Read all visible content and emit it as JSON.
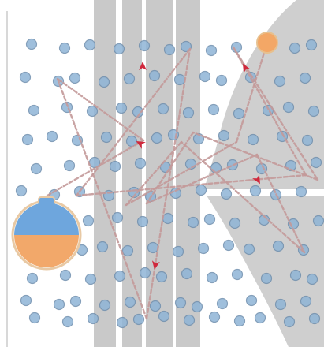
{
  "figure": {
    "description_none": "",
    "colors": {
      "background": "#ffffff",
      "band": "#c9c9c9",
      "halo": "#cfcfcf",
      "particle_fill": "#8fb4d6",
      "particle_stroke": "#6f8fae",
      "path": "#c49a9a",
      "arrow": "#d0283c",
      "flask_top": "#6ea6dd",
      "flask_bottom": "#f2a86a",
      "flask_outline": "#e8c9a4",
      "goal": "#f3a766",
      "left_rule": "#d8d8d8"
    },
    "icons": {
      "start": "round-flask-icon",
      "goal": "orange-ball-icon",
      "direction": "red-arrowhead-icon"
    }
  }
}
